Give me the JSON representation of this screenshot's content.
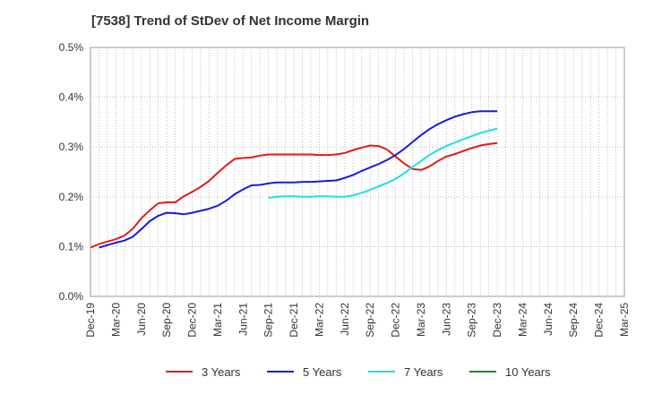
{
  "chart_data": {
    "type": "line",
    "title": "[7538]  Trend of StDev of Net Income Margin",
    "xlabel": "",
    "ylabel": "",
    "ylim": [
      0,
      0.5
    ],
    "y_ticks": [
      "0.0%",
      "0.1%",
      "0.2%",
      "0.3%",
      "0.4%",
      "0.5%"
    ],
    "x_ticks": [
      "Dec-19",
      "Mar-20",
      "Jun-20",
      "Sep-20",
      "Dec-20",
      "Mar-21",
      "Jun-21",
      "Sep-21",
      "Dec-21",
      "Mar-22",
      "Jun-22",
      "Sep-22",
      "Dec-22",
      "Mar-23",
      "Jun-23",
      "Sep-23",
      "Dec-23",
      "Mar-24",
      "Jun-24",
      "Sep-24",
      "Dec-24",
      "Mar-25"
    ],
    "grid": true,
    "legend_position": "bottom",
    "series": [
      {
        "name": "3 Years",
        "color": "#e31a1c",
        "points": [
          [
            0,
            0.098
          ],
          [
            1,
            0.105
          ],
          [
            2,
            0.11
          ],
          [
            3,
            0.115
          ],
          [
            4,
            0.122
          ],
          [
            5,
            0.136
          ],
          [
            6,
            0.157
          ],
          [
            7,
            0.173
          ],
          [
            8,
            0.187
          ],
          [
            9,
            0.189
          ],
          [
            10,
            0.189
          ],
          [
            11,
            0.201
          ],
          [
            12,
            0.21
          ],
          [
            13,
            0.22
          ],
          [
            14,
            0.232
          ],
          [
            15,
            0.248
          ],
          [
            16,
            0.263
          ],
          [
            17,
            0.276
          ],
          [
            18,
            0.278
          ],
          [
            19,
            0.279
          ],
          [
            20,
            0.283
          ],
          [
            21,
            0.285
          ],
          [
            22,
            0.285
          ],
          [
            23,
            0.285
          ],
          [
            24,
            0.285
          ],
          [
            25,
            0.285
          ],
          [
            26,
            0.285
          ],
          [
            27,
            0.284
          ],
          [
            28,
            0.284
          ],
          [
            29,
            0.285
          ],
          [
            30,
            0.288
          ],
          [
            31,
            0.294
          ],
          [
            32,
            0.299
          ],
          [
            33,
            0.303
          ],
          [
            34,
            0.302
          ],
          [
            35,
            0.295
          ],
          [
            36,
            0.281
          ],
          [
            37,
            0.267
          ],
          [
            38,
            0.256
          ],
          [
            39,
            0.254
          ],
          [
            40,
            0.261
          ],
          [
            41,
            0.272
          ],
          [
            42,
            0.281
          ],
          [
            43,
            0.286
          ],
          [
            44,
            0.292
          ],
          [
            45,
            0.298
          ],
          [
            46,
            0.303
          ],
          [
            47,
            0.306
          ],
          [
            48,
            0.308
          ]
        ]
      },
      {
        "name": "5 Years",
        "color": "#1a1adc",
        "points": [
          [
            1,
            0.098
          ],
          [
            2,
            0.103
          ],
          [
            3,
            0.108
          ],
          [
            4,
            0.112
          ],
          [
            5,
            0.12
          ],
          [
            6,
            0.135
          ],
          [
            7,
            0.151
          ],
          [
            8,
            0.162
          ],
          [
            9,
            0.168
          ],
          [
            10,
            0.167
          ],
          [
            11,
            0.165
          ],
          [
            12,
            0.168
          ],
          [
            13,
            0.172
          ],
          [
            14,
            0.176
          ],
          [
            15,
            0.182
          ],
          [
            16,
            0.192
          ],
          [
            17,
            0.205
          ],
          [
            18,
            0.215
          ],
          [
            19,
            0.223
          ],
          [
            20,
            0.224
          ],
          [
            21,
            0.227
          ],
          [
            22,
            0.229
          ],
          [
            23,
            0.229
          ],
          [
            24,
            0.229
          ],
          [
            25,
            0.23
          ],
          [
            26,
            0.23
          ],
          [
            27,
            0.231
          ],
          [
            28,
            0.232
          ],
          [
            29,
            0.233
          ],
          [
            30,
            0.238
          ],
          [
            31,
            0.244
          ],
          [
            32,
            0.252
          ],
          [
            33,
            0.259
          ],
          [
            34,
            0.266
          ],
          [
            35,
            0.274
          ],
          [
            36,
            0.284
          ],
          [
            37,
            0.296
          ],
          [
            38,
            0.31
          ],
          [
            39,
            0.324
          ],
          [
            40,
            0.336
          ],
          [
            41,
            0.346
          ],
          [
            42,
            0.354
          ],
          [
            43,
            0.361
          ],
          [
            44,
            0.366
          ],
          [
            45,
            0.37
          ],
          [
            46,
            0.372
          ],
          [
            47,
            0.372
          ],
          [
            48,
            0.372
          ]
        ]
      },
      {
        "name": "7 Years",
        "color": "#22dde8",
        "points": [
          [
            21,
            0.198
          ],
          [
            22,
            0.2
          ],
          [
            23,
            0.201
          ],
          [
            24,
            0.201
          ],
          [
            25,
            0.2
          ],
          [
            26,
            0.2
          ],
          [
            27,
            0.201
          ],
          [
            28,
            0.201
          ],
          [
            29,
            0.2
          ],
          [
            30,
            0.2
          ],
          [
            31,
            0.203
          ],
          [
            32,
            0.208
          ],
          [
            33,
            0.214
          ],
          [
            34,
            0.221
          ],
          [
            35,
            0.228
          ],
          [
            36,
            0.236
          ],
          [
            37,
            0.247
          ],
          [
            38,
            0.26
          ],
          [
            39,
            0.272
          ],
          [
            40,
            0.284
          ],
          [
            41,
            0.294
          ],
          [
            42,
            0.302
          ],
          [
            43,
            0.309
          ],
          [
            44,
            0.316
          ],
          [
            45,
            0.322
          ],
          [
            46,
            0.328
          ],
          [
            47,
            0.333
          ],
          [
            48,
            0.337
          ]
        ]
      },
      {
        "name": "10 Years",
        "color": "#1e8a1e",
        "points": []
      }
    ]
  }
}
